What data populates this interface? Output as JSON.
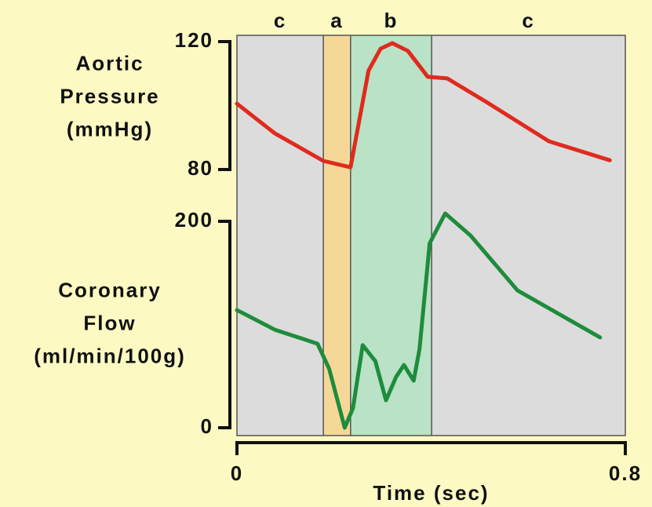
{
  "chart_data": [
    {
      "type": "line",
      "ylabel": [
        "Aortic",
        "Pressure",
        "(mmHg)"
      ],
      "ylim": [
        80,
        120
      ],
      "yticks": [
        80,
        120
      ],
      "regions": [
        {
          "label": "c",
          "start": 0,
          "end": 0.178,
          "color": "#dcdcdc"
        },
        {
          "label": "a",
          "start": 0.178,
          "end": 0.234,
          "color": "#f5d898"
        },
        {
          "label": "b",
          "start": 0.234,
          "end": 0.401,
          "color": "#b9e2c6"
        },
        {
          "label": "c",
          "start": 0.401,
          "end": 0.8,
          "color": "#dcdcdc"
        }
      ],
      "x": [
        0,
        0.078,
        0.178,
        0.234,
        0.271,
        0.296,
        0.32,
        0.352,
        0.393,
        0.433,
        0.514,
        0.643,
        0.768
      ],
      "series": [
        {
          "name": "Aortic Pressure",
          "color": "#e02a1e",
          "values": [
            100.6,
            91.3,
            82.7,
            80.7,
            110.9,
            117.8,
            119.5,
            117.1,
            109,
            108.5,
            101.1,
            88.8,
            82.9
          ]
        }
      ]
    },
    {
      "type": "line",
      "ylabel": [
        "Coronary",
        "Flow",
        "(ml/min/100g)"
      ],
      "ylim": [
        0,
        200
      ],
      "yticks": [
        0,
        200
      ],
      "xlim": [
        0,
        0.8
      ],
      "xticks": [
        0,
        0.8
      ],
      "xlabel": "Time (sec)",
      "x": [
        0,
        0.078,
        0.166,
        0.19,
        0.222,
        0.239,
        0.259,
        0.285,
        0.307,
        0.328,
        0.344,
        0.364,
        0.376,
        0.397,
        0.429,
        0.481,
        0.578,
        0.748
      ],
      "series": [
        {
          "name": "Coronary Flow",
          "color": "#1e8c3c",
          "values": [
            114,
            95,
            81.4,
            57,
            0,
            19,
            80,
            64.6,
            26.6,
            49.4,
            60.8,
            45.6,
            76,
            178.7,
            207.6,
            186.3,
            133,
            87.5
          ]
        }
      ]
    }
  ]
}
